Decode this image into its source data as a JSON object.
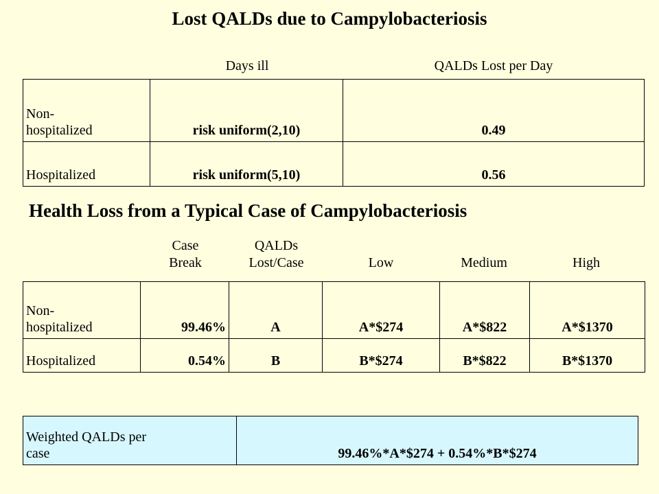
{
  "title1": "Lost QALDs due to Campylobacteriosis",
  "table1": {
    "headers": [
      "Days ill",
      "QALDs Lost per Day"
    ],
    "rows": [
      {
        "label": "Non-\nhospitalized",
        "days": "risk uniform(2,10)",
        "qalds": "0.49"
      },
      {
        "label": "Hospitalized",
        "days": "risk uniform(5,10)",
        "qalds": "0.56"
      }
    ]
  },
  "title2": "Health Loss from a Typical Case of Campylobacteriosis",
  "table2": {
    "headers": [
      "Case\nBreak",
      "QALDs\nLost/Case",
      "Low",
      "Medium",
      "High"
    ],
    "rows": [
      {
        "label": "Non-\nhospitalized",
        "case_break": "99.46%",
        "qalds": "A",
        "low": "A*$274",
        "medium": "A*$822",
        "high": "A*$1370"
      },
      {
        "label": "Hospitalized",
        "case_break": "0.54%",
        "qalds": "B",
        "low": "B*$274",
        "medium": "B*$822",
        "high": "B*$1370"
      }
    ]
  },
  "table3": {
    "label": "Weighted QALDs per\ncase",
    "value": "99.46%*A*$274 + 0.54%*B*$274"
  }
}
